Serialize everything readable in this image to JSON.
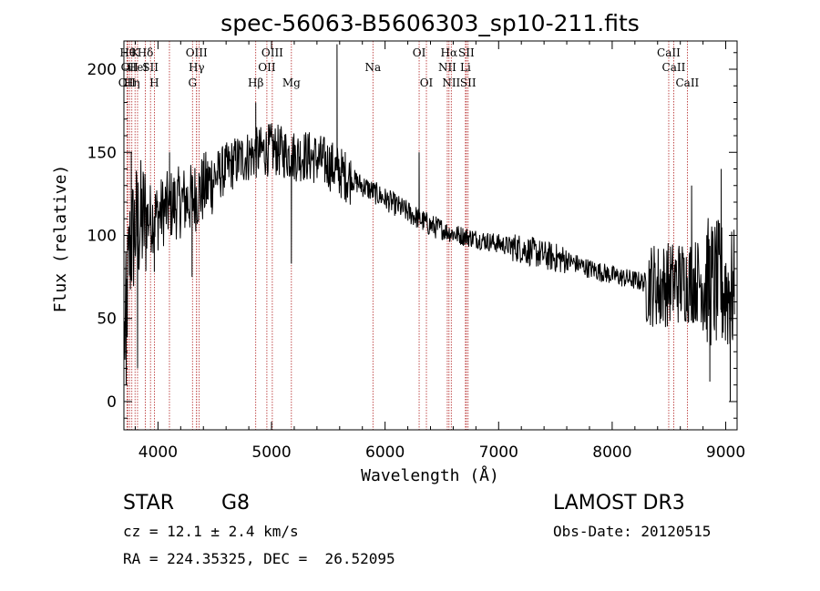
{
  "chart_data": {
    "type": "line",
    "title": "spec-56063-B5606303_sp10-211.fits",
    "xlabel": "Wavelength (Å)",
    "ylabel": "Flux (relative)",
    "xlim": [
      3700,
      9100
    ],
    "ylim": [
      -17,
      217
    ],
    "xticks": [
      4000,
      5000,
      6000,
      7000,
      8000,
      9000
    ],
    "yticks": [
      0,
      50,
      100,
      150,
      200
    ],
    "continuum": {
      "x": [
        3700,
        3750,
        3800,
        3900,
        4000,
        4100,
        4200,
        4300,
        4400,
        4500,
        4600,
        4700,
        4800,
        4900,
        5000,
        5100,
        5200,
        5300,
        5400,
        5500,
        5600,
        5700,
        5800,
        5900,
        6000,
        6200,
        6400,
        6600,
        6800,
        7000,
        7200,
        7400,
        7600,
        7800,
        8000,
        8200,
        8400,
        8600,
        8800,
        9000,
        9080
      ],
      "y": [
        30,
        90,
        105,
        110,
        112,
        118,
        120,
        122,
        128,
        135,
        140,
        145,
        148,
        150,
        152,
        150,
        148,
        148,
        146,
        143,
        138,
        134,
        130,
        126,
        122,
        114,
        106,
        101,
        98,
        95,
        92,
        88,
        85,
        80,
        76,
        73,
        70,
        72,
        73,
        68,
        64
      ]
    },
    "features": [
      {
        "x": 3720,
        "y": 10
      },
      {
        "x": 3765,
        "y": 150
      },
      {
        "x": 3820,
        "y": 20
      },
      {
        "x": 3968,
        "y": 78
      },
      {
        "x": 4102,
        "y": 150
      },
      {
        "x": 4300,
        "y": 75
      },
      {
        "x": 4861,
        "y": 180
      },
      {
        "x": 5015,
        "y": 158
      },
      {
        "x": 5175,
        "y": 83
      },
      {
        "x": 5577,
        "y": 215
      },
      {
        "x": 6300,
        "y": 150
      },
      {
        "x": 8420,
        "y": 47
      },
      {
        "x": 8700,
        "y": 130
      },
      {
        "x": 8860,
        "y": 12
      },
      {
        "x": 8960,
        "y": 140
      },
      {
        "x": 9040,
        "y": 0
      }
    ],
    "line_markers": [
      {
        "x": 3734,
        "row": 0,
        "label": "Hθ"
      },
      {
        "x": 3798,
        "row": 0,
        "label": "K"
      },
      {
        "x": 3889,
        "row": 0,
        "label": "Hδ"
      },
      {
        "x": 4101,
        "row": 0,
        "label": ""
      },
      {
        "x": 4340,
        "row": 0,
        "label": "OIII"
      },
      {
        "x": 4363,
        "row": 0,
        "label": ""
      },
      {
        "x": 5007,
        "row": 0,
        "label": "OIII"
      },
      {
        "x": 6300,
        "row": 0,
        "label": "OI"
      },
      {
        "x": 6563,
        "row": 0,
        "label": "Hα"
      },
      {
        "x": 6716,
        "row": 0,
        "label": "SII"
      },
      {
        "x": 8498,
        "row": 0,
        "label": "CaII"
      },
      {
        "x": 3750,
        "row": 1,
        "label": "OII"
      },
      {
        "x": 3820,
        "row": 1,
        "label": "HeI"
      },
      {
        "x": 3934,
        "row": 1,
        "label": "SII"
      },
      {
        "x": 4340,
        "row": 1,
        "label": "Hγ"
      },
      {
        "x": 4959,
        "row": 1,
        "label": "OII"
      },
      {
        "x": 6548,
        "row": 1,
        "label": "NII"
      },
      {
        "x": 6708,
        "row": 1,
        "label": "Li"
      },
      {
        "x": 8542,
        "row": 1,
        "label": "CaII"
      },
      {
        "x": 3727,
        "row": 2,
        "label": "OII"
      },
      {
        "x": 3770,
        "row": 2,
        "label": "Hη"
      },
      {
        "x": 3968,
        "row": 2,
        "label": "H"
      },
      {
        "x": 4304,
        "row": 2,
        "label": "G"
      },
      {
        "x": 4861,
        "row": 2,
        "label": "Hβ"
      },
      {
        "x": 5175,
        "row": 2,
        "label": "Mg"
      },
      {
        "x": 5893,
        "row": 1,
        "label": "Na"
      },
      {
        "x": 6364,
        "row": 2,
        "label": "OI"
      },
      {
        "x": 6583,
        "row": 2,
        "label": "NII"
      },
      {
        "x": 6731,
        "row": 2,
        "label": "SII"
      },
      {
        "x": 8662,
        "row": 2,
        "label": "CaII"
      }
    ]
  },
  "info": {
    "object_class": "STAR",
    "subclass": "G8",
    "survey": "LAMOST DR3",
    "cz": "cz = 12.1 ± 2.4 km/s",
    "obs_date": "Obs-Date: 20120515",
    "coords": "RA = 224.35325, DEC =  26.52095"
  },
  "colors": {
    "marker": "#b22222",
    "spectrum": "#000000"
  }
}
